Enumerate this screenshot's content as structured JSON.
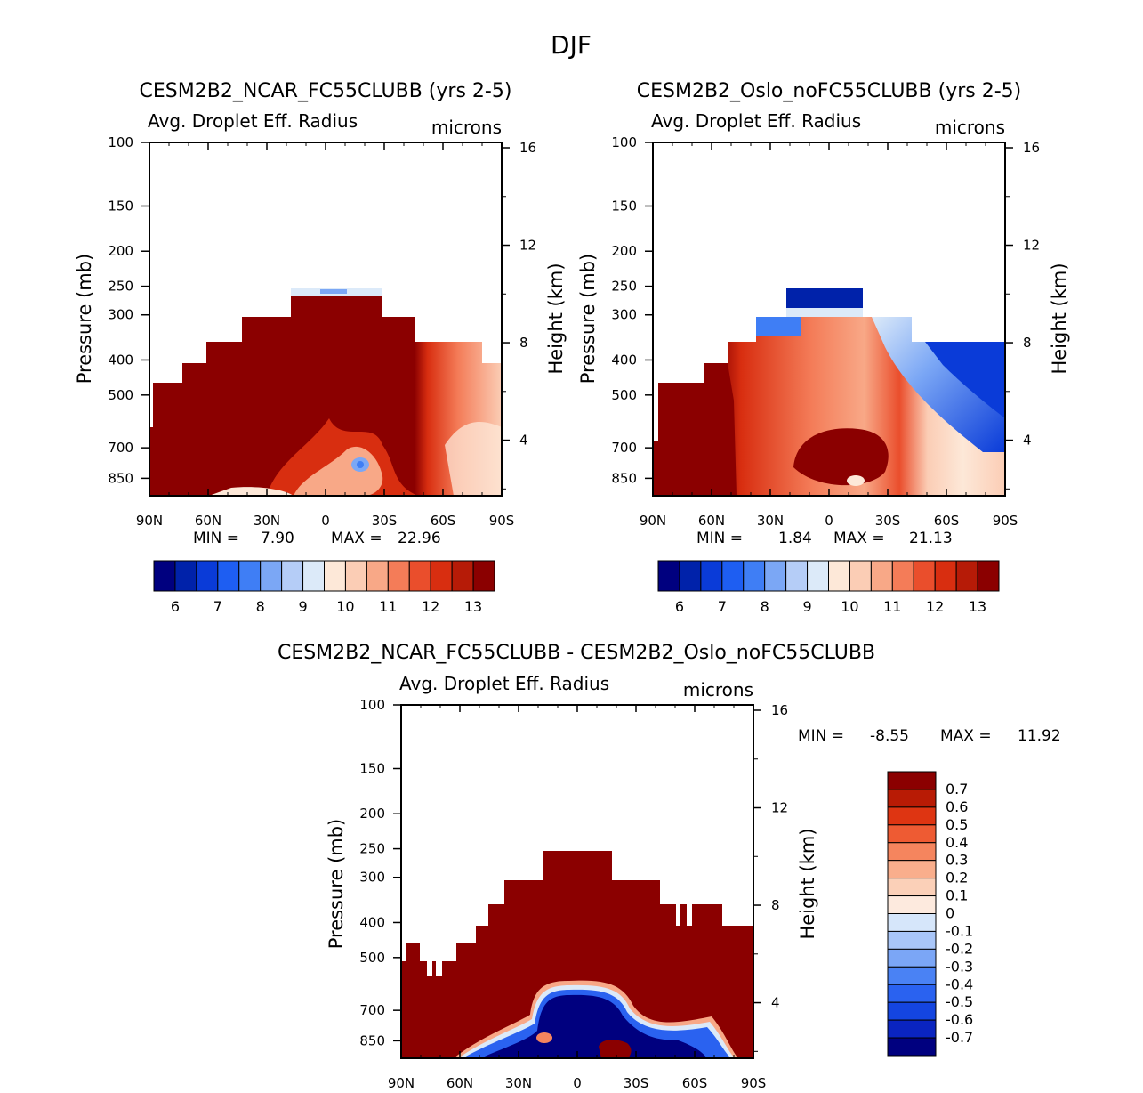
{
  "main_title": "DJF",
  "colors": {
    "field_scale": [
      "#00007f",
      "#0022aa",
      "#0a3bd8",
      "#1e5ef2",
      "#3f7ef5",
      "#7ba7f5",
      "#b5cdf7",
      "#dceaf9",
      "#fde8d8",
      "#fbcdb5",
      "#f8a887",
      "#f47c58",
      "#ea4e2c",
      "#d82e10",
      "#b61b07",
      "#8b0000"
    ],
    "diff_scale": [
      "#00007f",
      "#0a24c0",
      "#1445e0",
      "#2a62f0",
      "#4a82f4",
      "#7ba6f6",
      "#a9c6f8",
      "#d6e6fa",
      "#fdeade",
      "#fbd0b8",
      "#f9ae8c",
      "#f5855e",
      "#ee5b33",
      "#de3512",
      "#b81b05",
      "#8b0000"
    ]
  },
  "chart_data": [
    {
      "type": "heatmap",
      "title": "CESM2B2_NCAR_FC55CLUBB (yrs 2-5)",
      "subtitle_left": "Avg. Droplet Eff. Radius",
      "subtitle_right": "microns",
      "ylabel": "Pressure (mb)",
      "ylabel_right": "Height (km)",
      "x_ticks": [
        "90N",
        "60N",
        "30N",
        "0",
        "30S",
        "60S",
        "90S"
      ],
      "y_ticks": [
        "100",
        "150",
        "200",
        "250",
        "300",
        "400",
        "500",
        "700",
        "850"
      ],
      "y_ticks_right": [
        "16",
        "12",
        "8",
        "4"
      ],
      "stats": {
        "min_label": "MIN =",
        "min": "7.90",
        "max_label": "MAX =",
        "max": "22.96"
      },
      "colorbar_labels": [
        "6",
        "7",
        "8",
        "9",
        "10",
        "11",
        "12",
        "13"
      ],
      "summary": "Mostly dark red (>13 microns) through troposphere from 90N to 40S; lighter orange/pink values south of 50S; small blue spot near 20S 750mb; thin blue strip at cloud top near 250mb."
    },
    {
      "type": "heatmap",
      "title": "CESM2B2_Oslo_noFC55CLUBB (yrs 2-5)",
      "subtitle_left": "Avg. Droplet Eff. Radius",
      "subtitle_right": "microns",
      "ylabel": "Pressure (mb)",
      "ylabel_right": "Height (km)",
      "x_ticks": [
        "90N",
        "60N",
        "30N",
        "0",
        "30S",
        "60S",
        "90S"
      ],
      "y_ticks": [
        "100",
        "150",
        "200",
        "250",
        "300",
        "400",
        "500",
        "700",
        "850"
      ],
      "y_ticks_right": [
        "16",
        "12",
        "8",
        "4"
      ],
      "stats": {
        "min_label": "MIN =",
        "min": "1.84",
        "max_label": "MAX =",
        "max": "21.13"
      },
      "colorbar_labels": [
        "6",
        "7",
        "8",
        "9",
        "10",
        "11",
        "12",
        "13"
      ],
      "summary": "Dark red in NH polar lower troposphere, orange/red in tropics, blues at upper levels (250-300mb) and across Southern Hemisphere mid/upper levels."
    },
    {
      "type": "heatmap",
      "title": "CESM2B2_NCAR_FC55CLUBB - CESM2B2_Oslo_noFC55CLUBB",
      "subtitle_left": "Avg. Droplet Eff. Radius",
      "subtitle_right": "microns",
      "ylabel": "Pressure (mb)",
      "ylabel_right": "Height (km)",
      "x_ticks": [
        "90N",
        "60N",
        "30N",
        "0",
        "30S",
        "60S",
        "90S"
      ],
      "y_ticks": [
        "100",
        "150",
        "200",
        "250",
        "300",
        "400",
        "500",
        "700",
        "850"
      ],
      "y_ticks_right": [
        "16",
        "12",
        "8",
        "4"
      ],
      "stats": {
        "min_label": "MIN =",
        "min": "-8.55",
        "max_label": "MAX =",
        "max": "11.92"
      },
      "colorbar_labels": [
        "0.7",
        "0.6",
        "0.5",
        "0.4",
        "0.3",
        "0.2",
        "0.1",
        "0",
        "-0.1",
        "-0.2",
        "-0.3",
        "-0.4",
        "-0.5",
        "-0.6",
        "-0.7"
      ],
      "summary": "Positive difference (dark red) nearly everywhere; strong negative (dark blue) region in tropical lower troposphere (30N-40S, below 600mb)."
    }
  ]
}
